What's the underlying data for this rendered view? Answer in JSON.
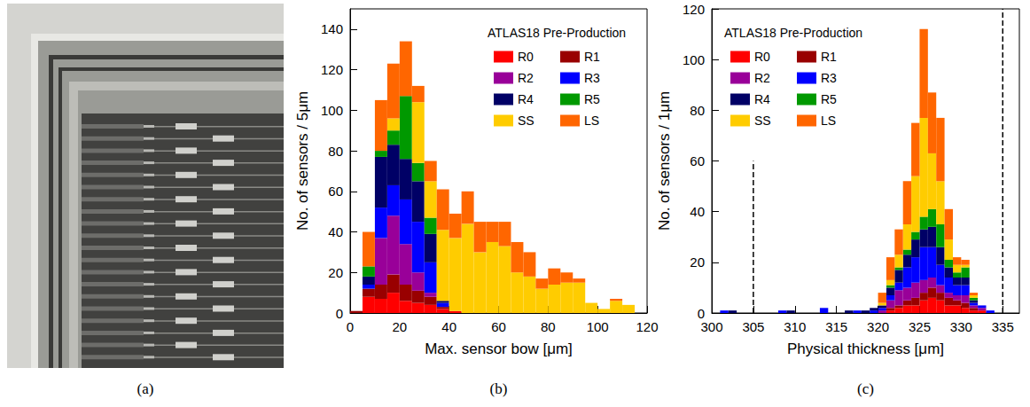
{
  "photo": {
    "label": "(a)"
  },
  "chart_data": [
    {
      "type": "histogram",
      "label": "(b)",
      "annotation": "ATLAS18 Pre-Production",
      "x_label": "Max. sensor bow [μm]",
      "y_label": "No. of sensors / 5μm",
      "stacked": true,
      "legend": "upper right",
      "grid": false,
      "bins": [
        0,
        5,
        10,
        15,
        20,
        25,
        30,
        35,
        40,
        45,
        50,
        55,
        60,
        65,
        70,
        75,
        80,
        85,
        90,
        95,
        100,
        105,
        110,
        115,
        120
      ],
      "xlim": [
        0,
        120
      ],
      "xticks": [
        0,
        20,
        40,
        60,
        80,
        100,
        120
      ],
      "ylim": [
        0,
        150
      ],
      "yticks": [
        0,
        20,
        40,
        60,
        80,
        100,
        120,
        140
      ],
      "series": [
        {
          "name": "R0",
          "color": "#ff0000",
          "values": [
            0,
            8,
            7,
            10,
            6,
            5,
            4,
            2,
            1,
            0,
            0,
            0,
            0,
            0,
            0,
            0,
            0,
            0,
            0,
            0,
            0,
            0,
            0,
            0
          ]
        },
        {
          "name": "R1",
          "color": "#990000",
          "values": [
            1,
            4,
            7,
            9,
            8,
            6,
            4,
            1,
            0,
            0,
            0,
            0,
            0,
            0,
            0,
            0,
            0,
            0,
            0,
            0,
            0,
            0,
            0,
            0
          ]
        },
        {
          "name": "R2",
          "color": "#990099",
          "values": [
            0,
            0,
            23,
            29,
            20,
            9,
            2,
            0,
            0,
            0,
            0,
            0,
            0,
            0,
            0,
            0,
            0,
            0,
            0,
            0,
            0,
            0,
            0,
            0
          ]
        },
        {
          "name": "R3",
          "color": "#0000ff",
          "values": [
            0,
            2,
            15,
            15,
            22,
            25,
            15,
            2,
            0,
            0,
            0,
            0,
            0,
            0,
            0,
            0,
            0,
            0,
            0,
            0,
            0,
            0,
            0,
            0
          ]
        },
        {
          "name": "R4",
          "color": "#000066",
          "values": [
            0,
            4,
            25,
            20,
            20,
            20,
            14,
            1,
            0,
            0,
            0,
            0,
            0,
            0,
            0,
            0,
            0,
            0,
            0,
            0,
            0,
            0,
            0,
            0
          ]
        },
        {
          "name": "R5",
          "color": "#009900",
          "values": [
            0,
            5,
            3,
            7,
            31,
            9,
            8,
            0,
            0,
            0,
            0,
            0,
            0,
            0,
            0,
            0,
            0,
            0,
            0,
            0,
            0,
            0,
            0,
            0
          ]
        },
        {
          "name": "SS",
          "color": "#ffcc00",
          "values": [
            0,
            0,
            0,
            6,
            0,
            30,
            18,
            35,
            36,
            44,
            30,
            35,
            33,
            20,
            18,
            12,
            14,
            15,
            15,
            5,
            2,
            6,
            4,
            0
          ]
        },
        {
          "name": "LS",
          "color": "#ff6600",
          "values": [
            0,
            17,
            25,
            27,
            27,
            8,
            10,
            20,
            12,
            16,
            15,
            10,
            12,
            15,
            12,
            5,
            8,
            5,
            2,
            0,
            0,
            1,
            0,
            0
          ]
        }
      ]
    },
    {
      "type": "histogram",
      "label": "(c)",
      "annotation": "ATLAS18 Pre-Production",
      "x_label": "Physical thickness [μm]",
      "y_label": "No. of sensors / 1μm",
      "stacked": true,
      "legend": "upper left",
      "grid": false,
      "vlines": [
        305,
        335
      ],
      "bins": [
        300,
        301,
        302,
        303,
        304,
        305,
        306,
        307,
        308,
        309,
        310,
        311,
        312,
        313,
        314,
        315,
        316,
        317,
        318,
        319,
        320,
        321,
        322,
        323,
        324,
        325,
        326,
        327,
        328,
        329,
        330,
        331,
        332,
        333,
        334,
        335,
        336,
        337
      ],
      "xlim": [
        300,
        337
      ],
      "xticks": [
        300,
        305,
        310,
        315,
        320,
        325,
        330,
        335
      ],
      "ylim": [
        0,
        120
      ],
      "yticks": [
        0,
        20,
        40,
        60,
        80,
        100,
        120
      ],
      "series": [
        {
          "name": "R0",
          "color": "#ff0000",
          "values": [
            0,
            0,
            0,
            0,
            0,
            0,
            0,
            0,
            0,
            0,
            0,
            0,
            0,
            0,
            0,
            0,
            0,
            0,
            0,
            0,
            0,
            1,
            2,
            3,
            3,
            5,
            6,
            5,
            3,
            3,
            2,
            1,
            1,
            0,
            0,
            0,
            0
          ]
        },
        {
          "name": "R1",
          "color": "#990000",
          "values": [
            0,
            0,
            0,
            0,
            0,
            0,
            0,
            0,
            0,
            0,
            0,
            0,
            0,
            0,
            0,
            0,
            0,
            0,
            0,
            0,
            0,
            1,
            1,
            2,
            3,
            3,
            4,
            3,
            3,
            2,
            2,
            1,
            0,
            0,
            0,
            0,
            0
          ]
        },
        {
          "name": "R2",
          "color": "#990099",
          "values": [
            0,
            0,
            0,
            0,
            0,
            0,
            0,
            0,
            0,
            0,
            0,
            0,
            0,
            0,
            0,
            0,
            0,
            0,
            0,
            0,
            1,
            3,
            6,
            5,
            6,
            5,
            4,
            3,
            2,
            2,
            3,
            1,
            1,
            0,
            0,
            0,
            0
          ]
        },
        {
          "name": "R3",
          "color": "#0000ff",
          "values": [
            0,
            1,
            0,
            0,
            0,
            0,
            0,
            0,
            1,
            0,
            0,
            0,
            0,
            2,
            0,
            0,
            0,
            1,
            0,
            1,
            1,
            2,
            3,
            8,
            10,
            13,
            12,
            8,
            6,
            4,
            4,
            1,
            1,
            1,
            0,
            0,
            0
          ]
        },
        {
          "name": "R4",
          "color": "#000066",
          "values": [
            0,
            0,
            1,
            0,
            0,
            0,
            0,
            0,
            0,
            1,
            0,
            0,
            0,
            0,
            0,
            0,
            1,
            0,
            1,
            1,
            1,
            3,
            5,
            5,
            7,
            7,
            8,
            7,
            4,
            3,
            3,
            1,
            0,
            0,
            0,
            0,
            0
          ]
        },
        {
          "name": "R5",
          "color": "#009900",
          "values": [
            0,
            0,
            0,
            0,
            0,
            0,
            0,
            0,
            0,
            0,
            0,
            0,
            0,
            0,
            0,
            0,
            0,
            0,
            0,
            0,
            0,
            1,
            1,
            2,
            3,
            5,
            7,
            9,
            3,
            2,
            4,
            1,
            0,
            0,
            0,
            0,
            0
          ]
        },
        {
          "name": "SS",
          "color": "#ffcc00",
          "values": [
            0,
            0,
            0,
            0,
            0,
            0,
            0,
            0,
            0,
            0,
            0,
            0,
            0,
            0,
            0,
            0,
            0,
            0,
            0,
            0,
            1,
            2,
            5,
            10,
            22,
            39,
            22,
            17,
            8,
            3,
            1,
            1,
            0,
            0,
            0,
            0,
            0
          ]
        },
        {
          "name": "LS",
          "color": "#ff6600",
          "values": [
            0,
            0,
            0,
            0,
            0,
            0,
            0,
            0,
            0,
            0,
            0,
            0,
            0,
            0,
            0,
            0,
            0,
            0,
            0,
            0,
            4,
            9,
            10,
            17,
            21,
            35,
            24,
            25,
            12,
            3,
            2,
            1,
            0,
            0,
            0,
            0,
            0
          ]
        }
      ]
    }
  ]
}
